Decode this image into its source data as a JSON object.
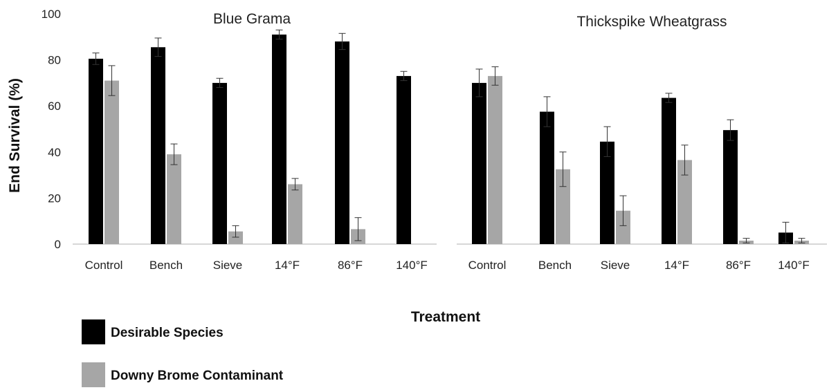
{
  "chart_data": {
    "type": "bar",
    "ylabel": "End Survival (%)",
    "xlabel": "Treatment",
    "ylim": [
      0,
      100
    ],
    "yticks": [
      0,
      20,
      40,
      60,
      80,
      100
    ],
    "grid": false,
    "legend_placement": "bottom-left",
    "colors": {
      "Desirable Species": "#000000",
      "Downy Brome Contaminant": "#a6a6a6",
      "error_bar": "#333333",
      "axis": "#bfbfbf"
    },
    "panels": [
      {
        "title": "Blue Grama",
        "categories": [
          "Control",
          "Bench",
          "Sieve",
          "14°F",
          "86°F",
          "140°F"
        ],
        "series": [
          {
            "name": "Desirable Species",
            "values": [
              80.5,
              85.5,
              70,
              91,
              88,
              73
            ],
            "errors": [
              2.5,
              4,
              2,
              2,
              3.5,
              2
            ]
          },
          {
            "name": "Downy Brome Contaminant",
            "values": [
              71,
              39,
              5.5,
              26,
              6.5,
              0
            ],
            "errors": [
              6.5,
              4.5,
              2.5,
              2.5,
              5,
              0
            ]
          }
        ]
      },
      {
        "title": "Thickspike Wheatgrass",
        "categories": [
          "Control",
          "Bench",
          "Sieve",
          "14°F",
          "86°F",
          "140°F"
        ],
        "series": [
          {
            "name": "Desirable Species",
            "values": [
              70,
              57.5,
              44.5,
              63.5,
              49.5,
              5
            ],
            "errors": [
              6,
              6.5,
              6.5,
              2,
              4.5,
              4.5
            ]
          },
          {
            "name": "Downy Brome Contaminant",
            "values": [
              73,
              32.5,
              14.5,
              36.5,
              1.5,
              1.5
            ],
            "errors": [
              4,
              7.5,
              6.5,
              6.5,
              1,
              1
            ]
          }
        ]
      }
    ]
  }
}
